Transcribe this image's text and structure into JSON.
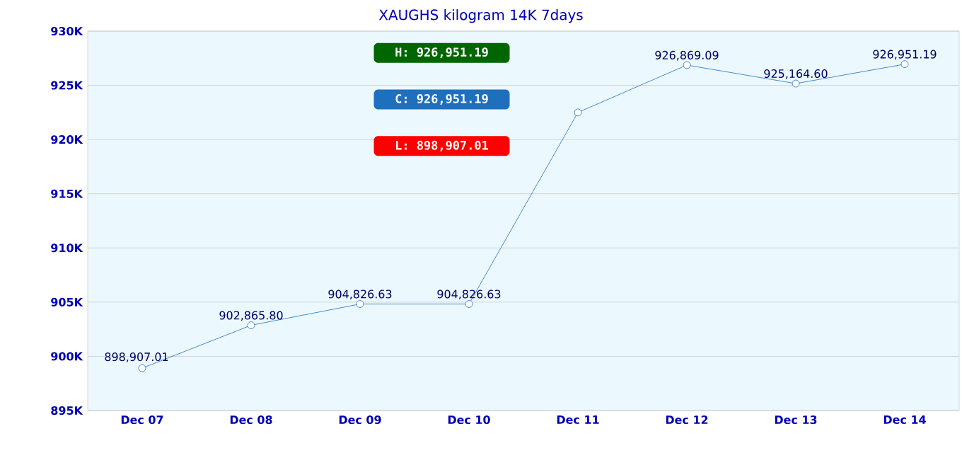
{
  "chart_data": {
    "type": "line",
    "title": "XAUGHS kilogram 14K 7days",
    "categories": [
      "Dec 07",
      "Dec 08",
      "Dec 09",
      "Dec 10",
      "Dec 11",
      "Dec 12",
      "Dec 13",
      "Dec 14"
    ],
    "values": [
      898907.01,
      902865.8,
      904826.63,
      904826.63,
      922500,
      926869.09,
      925164.6,
      926951.19
    ],
    "value_labels": [
      "898,907.01",
      "902,865.80",
      "904,826.63",
      "904,826.63",
      null,
      "926,869.09",
      "925,164.60",
      "926,951.19"
    ],
    "color": "#1f6fbf",
    "marker": "circle",
    "grid": "y",
    "ylim": [
      895000,
      930000
    ],
    "yticks": [
      {
        "value": 895000,
        "label": "895K"
      },
      {
        "value": 900000,
        "label": "900K"
      },
      {
        "value": 905000,
        "label": "905K"
      },
      {
        "value": 910000,
        "label": "910K"
      },
      {
        "value": 915000,
        "label": "915K"
      },
      {
        "value": 920000,
        "label": "920K"
      },
      {
        "value": 925000,
        "label": "925K"
      },
      {
        "value": 930000,
        "label": "930K"
      }
    ],
    "annotations": [
      "H: 926,951.19",
      "C: 926,951.19",
      "L: 898,907.01"
    ]
  }
}
